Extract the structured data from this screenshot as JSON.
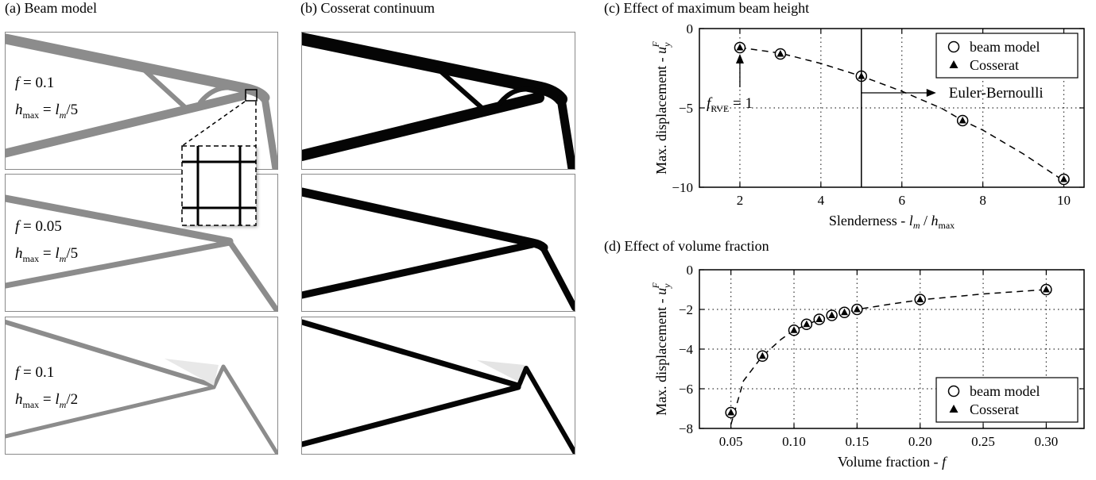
{
  "panels": {
    "a_title": "(a) Beam model",
    "b_title": "(b) Cosserat continuum",
    "c_title": "(c) Effect of maximum beam height",
    "d_title": "(d) Effect of volume fraction"
  },
  "beam_labels": [
    {
      "f_sym": "f",
      "f_val": "= 0.1",
      "h_sym": "h",
      "h_sub": "max",
      "h_eq": "=",
      "l_sym": "l",
      "l_sub": "m",
      "h_den": "/5"
    },
    {
      "f_sym": "f",
      "f_val": "= 0.05",
      "h_sym": "h",
      "h_sub": "max",
      "h_eq": "=",
      "l_sym": "l",
      "l_sub": "m",
      "h_den": "/5"
    },
    {
      "f_sym": "f",
      "f_val": "= 0.1",
      "h_sym": "h",
      "h_sub": "max",
      "h_eq": "=",
      "l_sym": "l",
      "l_sub": "m",
      "h_den": "/2"
    }
  ],
  "colors": {
    "beam_gray": "#8c8c8c",
    "cosserat_black": "#050505"
  },
  "chart_data": [
    {
      "type": "scatter",
      "title": "(c) Effect of maximum beam height",
      "xlabel": "Slenderness - l_m / h_max",
      "ylabel": "Max. displacement - u_y^F",
      "xlim": [
        1,
        10.5
      ],
      "ylim": [
        -10,
        0
      ],
      "xticks": [
        2,
        4,
        6,
        8,
        10
      ],
      "yticks": [
        0,
        -5,
        -10
      ],
      "grid": "dotted",
      "legend": "top-right",
      "series": [
        {
          "name": "beam model",
          "marker": "open-circle",
          "x": [
            2,
            3,
            5,
            7.5,
            10
          ],
          "y": [
            -1.2,
            -1.6,
            -3.0,
            -5.8,
            -9.5
          ]
        },
        {
          "name": "Cosserat",
          "marker": "filled-triangle",
          "x": [
            2,
            3,
            5,
            7.5,
            10
          ],
          "y": [
            -1.2,
            -1.6,
            -3.0,
            -5.8,
            -9.5
          ]
        }
      ],
      "fit_curve": {
        "style": "dashed",
        "x": [
          2,
          3,
          4,
          5,
          6,
          7,
          7.5,
          8,
          9,
          10
        ],
        "y": [
          -1.2,
          -1.55,
          -2.2,
          -3.0,
          -3.95,
          -5.05,
          -5.8,
          -6.4,
          -7.9,
          -9.6
        ]
      },
      "divider_x": 5,
      "annotations": {
        "fRVE": {
          "sym": "f",
          "sub": "RVE",
          "val": "= 1",
          "x": 2,
          "y": -1.2
        },
        "euler": {
          "text": "Euler-Bernoulli",
          "x": 5,
          "y": -4.05
        }
      }
    },
    {
      "type": "scatter",
      "title": "(d) Effect of volume fraction",
      "xlabel": "Volume fraction - f",
      "ylabel": "Max. displacement - u_y^F",
      "xlim": [
        0.025,
        0.33
      ],
      "ylim": [
        -8,
        0
      ],
      "xticks": [
        0.05,
        0.1,
        0.15,
        0.2,
        0.25,
        0.3
      ],
      "xticklabels": [
        "0.05",
        "0.10",
        "0.15",
        "0.20",
        "0.25",
        "0.30"
      ],
      "yticks": [
        0,
        -2,
        -4,
        -6,
        -8
      ],
      "grid": "dotted",
      "legend": "bottom-right",
      "series": [
        {
          "name": "beam model",
          "marker": "open-circle",
          "x": [
            0.05,
            0.075,
            0.1,
            0.11,
            0.12,
            0.13,
            0.14,
            0.15,
            0.2,
            0.3
          ],
          "y": [
            -7.2,
            -4.35,
            -3.05,
            -2.75,
            -2.5,
            -2.3,
            -2.15,
            -2.0,
            -1.5,
            -1.0
          ]
        },
        {
          "name": "Cosserat",
          "marker": "filled-triangle",
          "x": [
            0.05,
            0.075,
            0.1,
            0.11,
            0.12,
            0.13,
            0.14,
            0.15,
            0.2,
            0.3
          ],
          "y": [
            -7.2,
            -4.35,
            -3.05,
            -2.75,
            -2.5,
            -2.3,
            -2.15,
            -2.0,
            -1.5,
            -1.0
          ]
        }
      ],
      "fit_curve": {
        "style": "dashed",
        "x": [
          0.05,
          0.06,
          0.075,
          0.09,
          0.1,
          0.12,
          0.15,
          0.18,
          0.2,
          0.25,
          0.3
        ],
        "y": [
          -7.8,
          -5.6,
          -4.35,
          -3.5,
          -3.05,
          -2.5,
          -2.0,
          -1.7,
          -1.52,
          -1.22,
          -1.0
        ]
      }
    }
  ]
}
